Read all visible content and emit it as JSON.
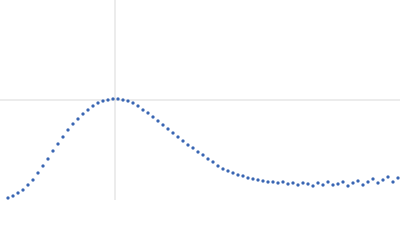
{
  "chart_data": {
    "type": "scatter",
    "color": "#3a66b3",
    "grid": true,
    "xlim": [
      0,
      4
    ],
    "ylim": [
      0,
      2
    ],
    "xticks": [
      1.15
    ],
    "yticks": [
      1
    ],
    "x": [
      0.08,
      0.13,
      0.18,
      0.23,
      0.28,
      0.33,
      0.38,
      0.43,
      0.48,
      0.53,
      0.58,
      0.63,
      0.68,
      0.73,
      0.78,
      0.83,
      0.88,
      0.93,
      0.98,
      1.03,
      1.08,
      1.13,
      1.18,
      1.23,
      1.28,
      1.33,
      1.38,
      1.43,
      1.48,
      1.53,
      1.58,
      1.63,
      1.68,
      1.73,
      1.78,
      1.83,
      1.88,
      1.93,
      1.98,
      2.03,
      2.08,
      2.13,
      2.18,
      2.23,
      2.28,
      2.33,
      2.38,
      2.43,
      2.48,
      2.53,
      2.58,
      2.63,
      2.68,
      2.73,
      2.78,
      2.83,
      2.88,
      2.93,
      2.98,
      3.03,
      3.08,
      3.13,
      3.18,
      3.23,
      3.28,
      3.33,
      3.38,
      3.43,
      3.48,
      3.53,
      3.58,
      3.63,
      3.68,
      3.73,
      3.78,
      3.83,
      3.88,
      3.93,
      3.98
    ],
    "values": [
      0.02,
      0.04,
      0.07,
      0.1,
      0.15,
      0.2,
      0.27,
      0.34,
      0.41,
      0.49,
      0.56,
      0.63,
      0.7,
      0.76,
      0.81,
      0.86,
      0.9,
      0.94,
      0.97,
      0.99,
      1.0,
      1.01,
      1.01,
      1.0,
      0.99,
      0.97,
      0.94,
      0.9,
      0.87,
      0.83,
      0.79,
      0.75,
      0.71,
      0.67,
      0.63,
      0.59,
      0.55,
      0.52,
      0.48,
      0.45,
      0.41,
      0.38,
      0.34,
      0.31,
      0.29,
      0.27,
      0.25,
      0.24,
      0.22,
      0.21,
      0.2,
      0.19,
      0.18,
      0.18,
      0.17,
      0.18,
      0.16,
      0.17,
      0.15,
      0.17,
      0.16,
      0.14,
      0.17,
      0.15,
      0.18,
      0.15,
      0.16,
      0.18,
      0.14,
      0.17,
      0.19,
      0.15,
      0.18,
      0.21,
      0.17,
      0.2,
      0.23,
      0.18,
      0.22
    ]
  }
}
